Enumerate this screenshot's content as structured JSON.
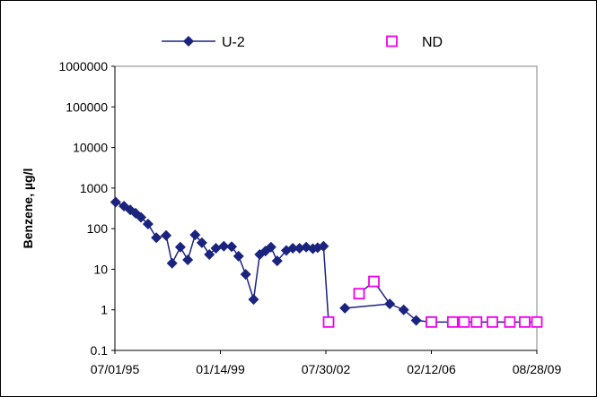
{
  "chart_data": {
    "type": "line",
    "xlabel": "",
    "ylabel": "Benzene, µg/l",
    "y_scale": "log",
    "ylim": [
      0.1,
      1000000
    ],
    "y_ticks": [
      "0.1",
      "1",
      "10",
      "100",
      "1000",
      "10000",
      "100000",
      "1000000"
    ],
    "xlim": [
      "1995-07-01",
      "2009-08-28"
    ],
    "x_ticks": [
      "07/01/95",
      "01/14/99",
      "07/30/02",
      "02/12/06",
      "08/28/09"
    ],
    "legend_placement": "top",
    "grid": false,
    "colors": {
      "u2": "#1a237e",
      "nd": "#ee00ee"
    },
    "series": [
      {
        "name": "U-2",
        "marker": "diamond",
        "points": [
          {
            "x": "1995-07-10",
            "y": 450
          },
          {
            "x": "1995-10-20",
            "y": 360
          },
          {
            "x": "1996-01-05",
            "y": 290
          },
          {
            "x": "1996-03-10",
            "y": 240
          },
          {
            "x": "1996-05-15",
            "y": 190
          },
          {
            "x": "1996-08-10",
            "y": 130
          },
          {
            "x": "1996-11-20",
            "y": 60
          },
          {
            "x": "1997-03-20",
            "y": 68
          },
          {
            "x": "1997-06-01",
            "y": 14
          },
          {
            "x": "1997-09-10",
            "y": 35
          },
          {
            "x": "1997-12-10",
            "y": 17
          },
          {
            "x": "1998-03-10",
            "y": 70
          },
          {
            "x": "1998-06-01",
            "y": 45
          },
          {
            "x": "1998-09-01",
            "y": 23
          },
          {
            "x": "1998-11-20",
            "y": 33
          },
          {
            "x": "1999-02-25",
            "y": 37
          },
          {
            "x": "1999-06-01",
            "y": 36
          },
          {
            "x": "1999-08-25",
            "y": 21
          },
          {
            "x": "1999-11-20",
            "y": 7.5
          },
          {
            "x": "2000-02-25",
            "y": 1.8
          },
          {
            "x": "2000-05-10",
            "y": 23
          },
          {
            "x": "2000-07-20",
            "y": 28
          },
          {
            "x": "2000-09-25",
            "y": 35
          },
          {
            "x": "2000-12-10",
            "y": 16
          },
          {
            "x": "2001-04-01",
            "y": 29
          },
          {
            "x": "2001-06-20",
            "y": 33
          },
          {
            "x": "2001-09-10",
            "y": 33
          },
          {
            "x": "2001-12-01",
            "y": 35
          },
          {
            "x": "2002-02-20",
            "y": 32
          },
          {
            "x": "2002-04-20",
            "y": 34
          },
          {
            "x": "2002-07-01",
            "y": 37
          },
          {
            "x": "2003-03-20",
            "y": 1.1
          },
          {
            "x": "2004-09-20",
            "y": 1.4
          },
          {
            "x": "2005-03-10",
            "y": 1.0
          },
          {
            "x": "2005-08-10",
            "y": 0.55
          }
        ]
      },
      {
        "name": "ND",
        "marker": "square-open",
        "points": [
          {
            "x": "2002-09-01",
            "y": 0.5
          },
          {
            "x": "2003-09-10",
            "y": 2.5
          },
          {
            "x": "2004-03-10",
            "y": 5
          },
          {
            "x": "2006-02-12",
            "y": 0.5
          },
          {
            "x": "2006-11-01",
            "y": 0.5
          },
          {
            "x": "2007-03-20",
            "y": 0.5
          },
          {
            "x": "2007-08-20",
            "y": 0.5
          },
          {
            "x": "2008-03-01",
            "y": 0.5
          },
          {
            "x": "2008-10-01",
            "y": 0.5
          },
          {
            "x": "2009-04-01",
            "y": 0.5
          },
          {
            "x": "2009-08-28",
            "y": 0.5
          }
        ]
      }
    ]
  }
}
